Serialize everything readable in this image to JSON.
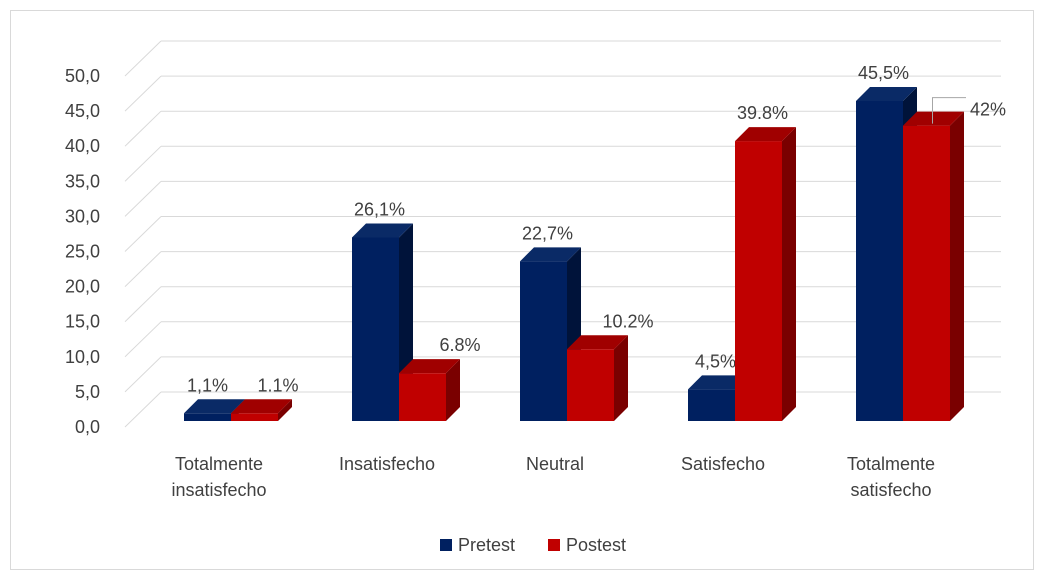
{
  "chart_data": {
    "type": "bar",
    "categories": [
      "Totalmente insatisfecho",
      "Insatisfecho",
      "Neutral",
      "Satisfecho",
      "Totalmente satisfecho"
    ],
    "category_lines": [
      [
        "Totalmente",
        "insatisfecho"
      ],
      [
        "Insatisfecho"
      ],
      [
        "Neutral"
      ],
      [
        "Satisfecho"
      ],
      [
        "Totalmente",
        "satisfecho"
      ]
    ],
    "series": [
      {
        "name": "Pretest",
        "values": [
          1.1,
          26.1,
          22.7,
          4.5,
          45.5
        ],
        "labels": [
          "1,1%",
          "26,1%",
          "22,7%",
          "4,5%",
          "45,5%"
        ],
        "color": "#002060",
        "side_color": "#00133a",
        "top_color": "#0a2a66"
      },
      {
        "name": "Postest",
        "values": [
          1.1,
          6.8,
          10.2,
          39.8,
          42.0
        ],
        "labels": [
          "1.1%",
          "6.8%",
          "10.2%",
          "39.8%",
          "42%"
        ],
        "color": "#c00000",
        "side_color": "#7a0000",
        "top_color": "#a00000"
      }
    ],
    "yticks": [
      "0,0",
      "5,0",
      "10,0",
      "15,0",
      "20,0",
      "25,0",
      "30,0",
      "35,0",
      "40,0",
      "45,0",
      "50,0"
    ],
    "ylim": [
      0,
      50
    ],
    "grid": true,
    "legend": "bottom",
    "style": "3d-clustered-column",
    "title": "",
    "xlabel": "",
    "ylabel": ""
  }
}
